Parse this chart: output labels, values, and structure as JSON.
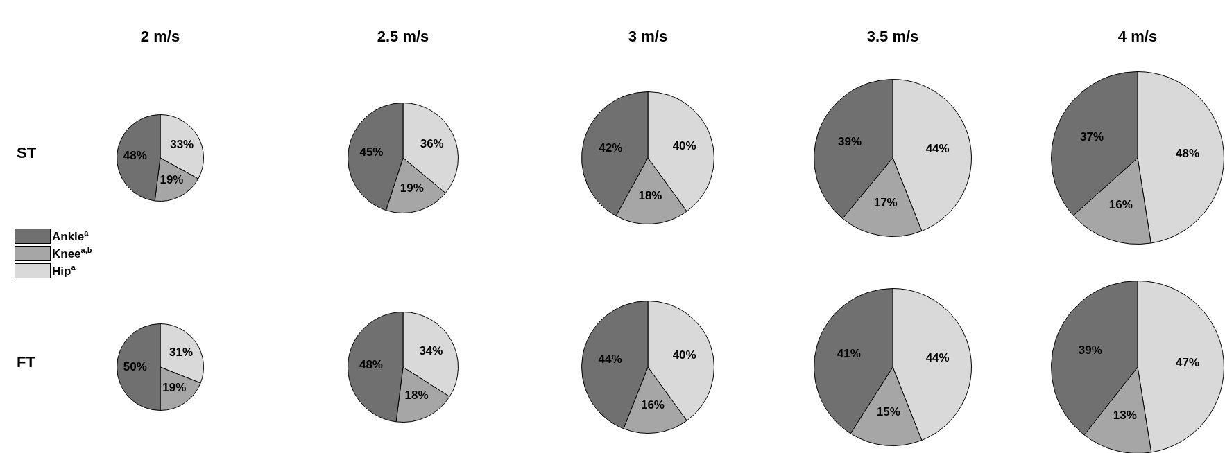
{
  "chart_data": [
    {
      "type": "pie",
      "title": "2 m/s",
      "ylabel": "ST",
      "legend": "left",
      "categories": [
        "Ankle$^{a}$",
        "Knee$^{a,b}$",
        "Hip$^{a}$"
      ],
      "values": [
        48,
        19,
        33
      ],
      "value_labels": [
        "48%",
        "19%",
        "33%"
      ],
      "colors": [
        "#707070",
        "#a6a6a6",
        "#d9d9d9"
      ]
    },
    {
      "type": "pie",
      "title": "2.5 m/s",
      "values": [
        45,
        19,
        36
      ],
      "value_labels": [
        "45%",
        "19%",
        "36%"
      ],
      "colors": [
        "#707070",
        "#a6a6a6",
        "#d9d9d9"
      ]
    },
    {
      "type": "pie",
      "title": "3 m/s",
      "values": [
        42,
        18,
        40
      ],
      "value_labels": [
        "42%",
        "18%",
        "40%"
      ],
      "colors": [
        "#707070",
        "#a6a6a6",
        "#d9d9d9"
      ]
    },
    {
      "type": "pie",
      "title": "3.5 m/s",
      "values": [
        39,
        17,
        44
      ],
      "value_labels": [
        "39%",
        "17%",
        "44%"
      ],
      "colors": [
        "#707070",
        "#a6a6a6",
        "#d9d9d9"
      ]
    },
    {
      "type": "pie",
      "title": "4 m/s",
      "values": [
        37,
        16,
        48
      ],
      "value_labels": [
        "37%",
        "16%",
        "48%"
      ],
      "colors": [
        "#707070",
        "#a6a6a6",
        "#d9d9d9"
      ]
    },
    {
      "type": "pie",
      "ylabel": "FT",
      "values": [
        50,
        19,
        31
      ],
      "value_labels": [
        "50%",
        "19%",
        "31%"
      ],
      "colors": [
        "#707070",
        "#a6a6a6",
        "#d9d9d9"
      ]
    },
    {
      "type": "pie",
      "values": [
        48,
        18,
        34
      ],
      "value_labels": [
        "48%",
        "18%",
        "34%"
      ],
      "colors": [
        "#707070",
        "#a6a6a6",
        "#d9d9d9"
      ]
    },
    {
      "type": "pie",
      "values": [
        44,
        16,
        40
      ],
      "value_labels": [
        "44%",
        "16%",
        "40%"
      ],
      "colors": [
        "#707070",
        "#a6a6a6",
        "#d9d9d9"
      ]
    },
    {
      "type": "pie",
      "values": [
        41,
        15,
        44
      ],
      "value_labels": [
        "41%",
        "15%",
        "44%"
      ],
      "colors": [
        "#707070",
        "#a6a6a6",
        "#d9d9d9"
      ]
    },
    {
      "type": "pie",
      "values": [
        39,
        13,
        47
      ],
      "value_labels": [
        "39%",
        "13%",
        "47%"
      ],
      "colors": [
        "#707070",
        "#a6a6a6",
        "#d9d9d9"
      ]
    }
  ]
}
